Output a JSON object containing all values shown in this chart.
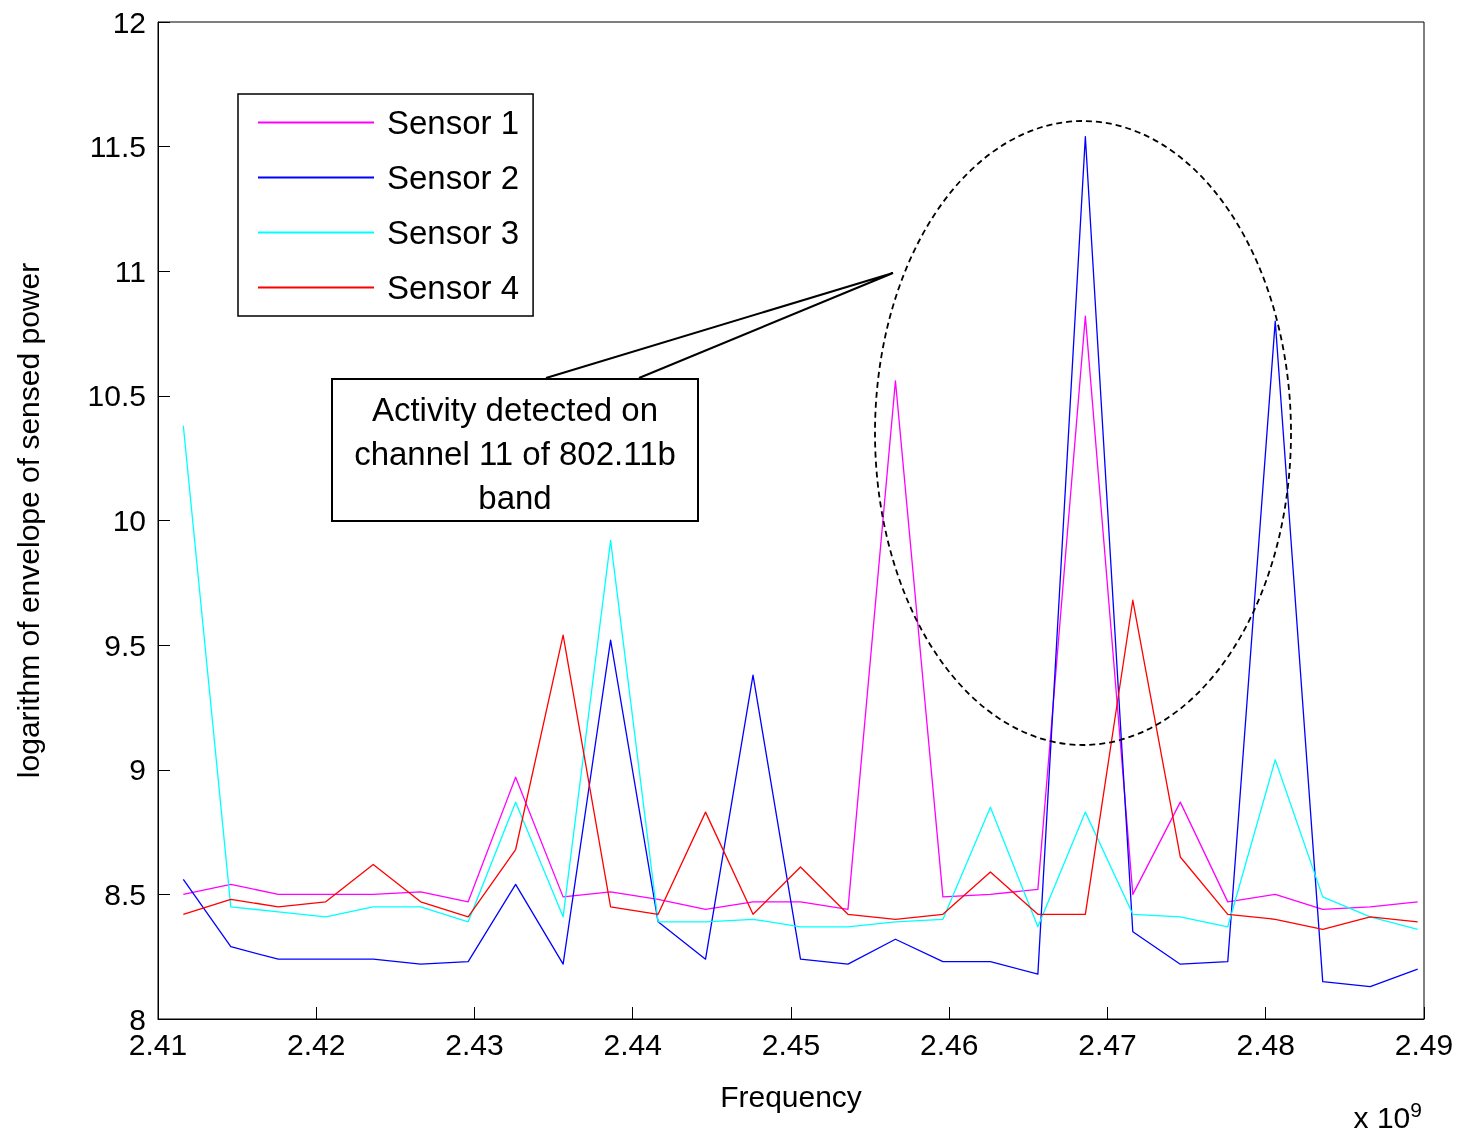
{
  "chart_data": {
    "type": "line",
    "xlabel": "Frequency",
    "ylabel": "logarithm of envelope of sensed power",
    "x": [
      2.4116,
      2.4146,
      2.4176,
      2.4206,
      2.4236,
      2.4266,
      2.4296,
      2.4326,
      2.4356,
      2.4386,
      2.4416,
      2.4446,
      2.4476,
      2.4506,
      2.4536,
      2.4566,
      2.4596,
      2.4626,
      2.4656,
      2.4686,
      2.4716,
      2.4746,
      2.4776,
      2.4806,
      2.4836,
      2.4866,
      2.4896
    ],
    "series": [
      {
        "name": "Sensor 1",
        "color": "#ff00ff",
        "values": [
          8.5,
          8.54,
          8.5,
          8.5,
          8.5,
          8.51,
          8.47,
          8.97,
          8.49,
          8.51,
          8.48,
          8.44,
          8.47,
          8.47,
          8.44,
          10.56,
          8.49,
          8.5,
          8.52,
          10.82,
          8.5,
          8.87,
          8.47,
          8.5,
          8.44,
          8.45,
          8.47
        ]
      },
      {
        "name": "Sensor 2",
        "color": "#0000ff",
        "values": [
          8.56,
          8.29,
          8.24,
          8.24,
          8.24,
          8.22,
          8.23,
          8.54,
          8.22,
          9.52,
          8.39,
          8.24,
          9.38,
          8.24,
          8.22,
          8.32,
          8.23,
          8.23,
          8.18,
          11.54,
          8.35,
          8.22,
          8.23,
          10.8,
          8.15,
          8.13,
          8.2
        ]
      },
      {
        "name": "Sensor 3",
        "color": "#00ffff",
        "values": [
          10.38,
          8.45,
          8.43,
          8.41,
          8.45,
          8.45,
          8.39,
          8.87,
          8.41,
          9.92,
          8.39,
          8.39,
          8.4,
          8.37,
          8.37,
          8.39,
          8.4,
          8.85,
          8.37,
          8.83,
          8.42,
          8.41,
          8.37,
          9.04,
          8.49,
          8.41,
          8.36
        ]
      },
      {
        "name": "Sensor 4",
        "color": "#ff0000",
        "values": [
          8.42,
          8.48,
          8.45,
          8.47,
          8.62,
          8.47,
          8.41,
          8.68,
          9.54,
          8.45,
          8.42,
          8.83,
          8.42,
          8.61,
          8.42,
          8.4,
          8.42,
          8.59,
          8.42,
          8.42,
          9.68,
          8.65,
          8.42,
          8.4,
          8.36,
          8.41,
          8.39
        ]
      }
    ],
    "xlim": [
      2.41,
      2.49
    ],
    "xticks": [
      2.41,
      2.42,
      2.43,
      2.44,
      2.45,
      2.46,
      2.47,
      2.48,
      2.49
    ],
    "ylim": [
      8,
      12
    ],
    "yticks": [
      8,
      8.5,
      9,
      9.5,
      10,
      10.5,
      11,
      11.5,
      12
    ],
    "annotations": [
      "Activity detected on channel 11 of 802.11b band",
      "x 10$^{9}$"
    ],
    "legend": "top left",
    "grid": false,
    "marker": "none",
    "line_style": "solid"
  }
}
